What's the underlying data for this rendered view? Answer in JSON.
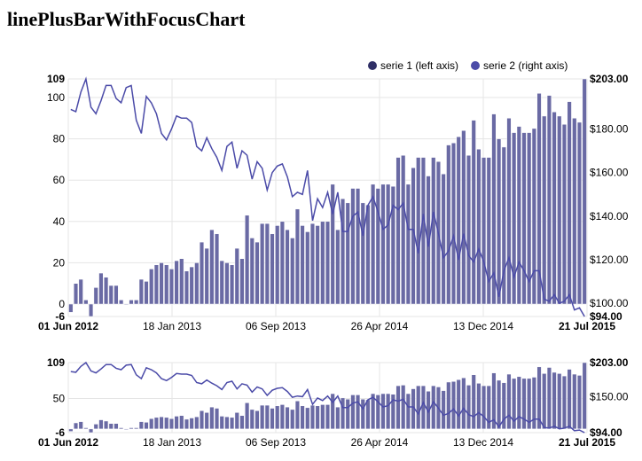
{
  "title": "linePlusBarWithFocusChart",
  "colors": {
    "series1": "#2f2f66",
    "series1_bar": "#6a6aa4",
    "series2": "#4b4ba8",
    "grid": "#e5e5e5"
  },
  "chart_data": {
    "type": "bar",
    "combo": "line-plus-bar-with-focus",
    "legend": {
      "placement": "top-right",
      "items": [
        "serie 1 (left axis)",
        "serie 2 (right axis)"
      ]
    },
    "x_start": "2012-06-01",
    "x_end": "2015-07-21",
    "x_ticks": [
      "01 Jun 2012",
      "18 Jan 2013",
      "06 Sep 2013",
      "26 Apr 2014",
      "13 Dec 2014",
      "21 Jul 2015"
    ],
    "left_axis": {
      "ylim": [
        -6,
        109
      ],
      "ticks": [
        -6,
        0,
        20,
        40,
        60,
        80,
        100,
        109
      ]
    },
    "right_axis": {
      "ylim": [
        94,
        203
      ],
      "ticks": [
        94,
        100,
        120,
        140,
        160,
        180,
        203
      ],
      "tick_labels": [
        "$94.00",
        "$100.00",
        "$120.00",
        "$140.00",
        "$160.00",
        "$180.00",
        "$203.00"
      ]
    },
    "focus": {
      "left_ticks": [
        -6,
        50,
        109
      ],
      "right_ticks": [
        "$94.00",
        "$150.00",
        "$203.00"
      ]
    },
    "series": [
      {
        "name": "serie 1 (left axis)",
        "type": "bar",
        "axis": "left",
        "values": [
          -4,
          10,
          12,
          2,
          -6,
          8,
          15,
          13,
          9,
          9,
          2,
          0,
          2,
          2,
          12,
          11,
          17,
          19,
          20,
          19,
          17,
          21,
          22,
          16,
          18,
          20,
          30,
          27,
          36,
          34,
          21,
          20,
          19,
          27,
          22,
          43,
          32,
          30,
          39,
          39,
          34,
          38,
          40,
          36,
          32,
          46,
          38,
          35,
          39,
          38,
          40,
          40,
          58,
          36,
          51,
          49,
          56,
          56,
          49,
          48,
          58,
          56,
          58,
          58,
          57,
          71,
          72,
          58,
          66,
          71,
          71,
          62,
          71,
          69,
          63,
          77,
          78,
          81,
          84,
          72,
          89,
          75,
          71,
          71,
          92,
          80,
          76,
          90,
          83,
          86,
          83,
          83,
          85,
          102,
          91,
          101,
          93,
          91,
          87,
          98,
          90,
          88,
          109
        ]
      },
      {
        "name": "serie 2 (right axis)",
        "type": "line",
        "axis": "right",
        "values": [
          189,
          188,
          197,
          203,
          190,
          187,
          193,
          200,
          200,
          194,
          192,
          199,
          200,
          184,
          178,
          195,
          192,
          187,
          178,
          175,
          180,
          186,
          185,
          185,
          183,
          172,
          170,
          176,
          171,
          167,
          161,
          172,
          174,
          162,
          170,
          168,
          157,
          165,
          162,
          152,
          160,
          163,
          164,
          158,
          149,
          151,
          150,
          161,
          138,
          148,
          144,
          151,
          141,
          151,
          133,
          133,
          140,
          142,
          131,
          145,
          149,
          142,
          134,
          136,
          145,
          143,
          146,
          134,
          134,
          123,
          141,
          126,
          142,
          132,
          121,
          124,
          131,
          120,
          132,
          122,
          119,
          125,
          119,
          110,
          114,
          103,
          115,
          121,
          112,
          119,
          115,
          110,
          115,
          115,
          102,
          101,
          104,
          100,
          101,
          104,
          97,
          98,
          94
        ]
      }
    ]
  }
}
